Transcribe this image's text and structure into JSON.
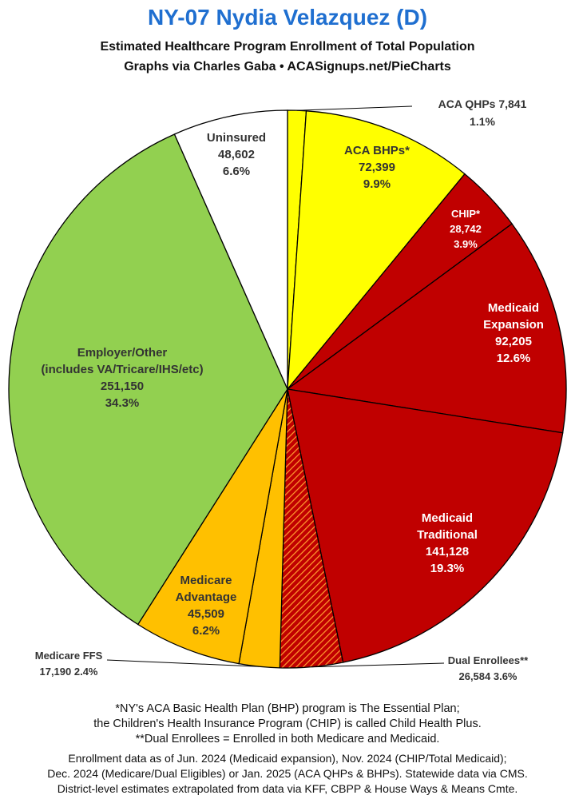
{
  "header": {
    "title": "NY-07 Nydia Velazquez (D)",
    "subtitle": "Estimated Healthcare Program Enrollment of Total Population",
    "credit": "Graphs via Charles Gaba   •   ACASignups.net/PieCharts"
  },
  "chart_data": {
    "type": "pie",
    "start_angle": "12 o'clock, clockwise",
    "slices": [
      {
        "name": "ACA QHPs",
        "value": 7841,
        "value_label": "7,841",
        "percent": "1.1%",
        "color": "#ffff00"
      },
      {
        "name": "ACA BHPs*",
        "value": 72399,
        "value_label": "72,399",
        "percent": "9.9%",
        "color": "#ffff00"
      },
      {
        "name": "CHIP*",
        "value": 28742,
        "value_label": "28,742",
        "percent": "3.9%",
        "color": "#c00000"
      },
      {
        "name": "Medicaid Expansion",
        "value": 92205,
        "value_label": "92,205",
        "percent": "12.6%",
        "color": "#c00000"
      },
      {
        "name": "Medicaid Traditional",
        "value": 141128,
        "value_label": "141,128",
        "percent": "19.3%",
        "color": "#c00000"
      },
      {
        "name": "Dual Enrollees**",
        "value": 26584,
        "value_label": "26,584",
        "percent": "3.6%",
        "color": "#c00000",
        "pattern": "hatched-orange"
      },
      {
        "name": "Medicare FFS",
        "value": 17190,
        "value_label": "17,190",
        "percent": "2.4%",
        "color": "#ffc000"
      },
      {
        "name": "Medicare Advantage",
        "value": 45509,
        "value_label": "45,509",
        "percent": "6.2%",
        "color": "#ffc000"
      },
      {
        "name": "Employer/Other (includes VA/Tricare/IHS/etc)",
        "value": 251150,
        "value_label": "251,150",
        "percent": "34.3%",
        "color": "#92d050"
      },
      {
        "name": "Uninsured",
        "value": 48602,
        "value_label": "48,602",
        "percent": "6.6%",
        "color": "#ffffff"
      }
    ]
  },
  "notes": {
    "line1": "*NY's ACA Basic Health Plan (BHP) program is The Essential Plan;",
    "line2": "the Children's Health Insurance Program (CHIP) is called Child Health Plus.",
    "line3": "**Dual Enrollees = Enrolled in both Medicare and Medicaid."
  },
  "sources": {
    "line1": "Enrollment data as of Jun. 2024 (Medicaid expansion), Nov. 2024 (CHIP/Total Medicaid);",
    "line2": "Dec. 2024 (Medicare/Dual Eligibles) or Jan. 2025 (ACA QHPs & BHPs). Statewide data via CMS.",
    "line3": "District-level estimates extrapolated from data via KFF, CBPP & House Ways & Means Cmte."
  }
}
